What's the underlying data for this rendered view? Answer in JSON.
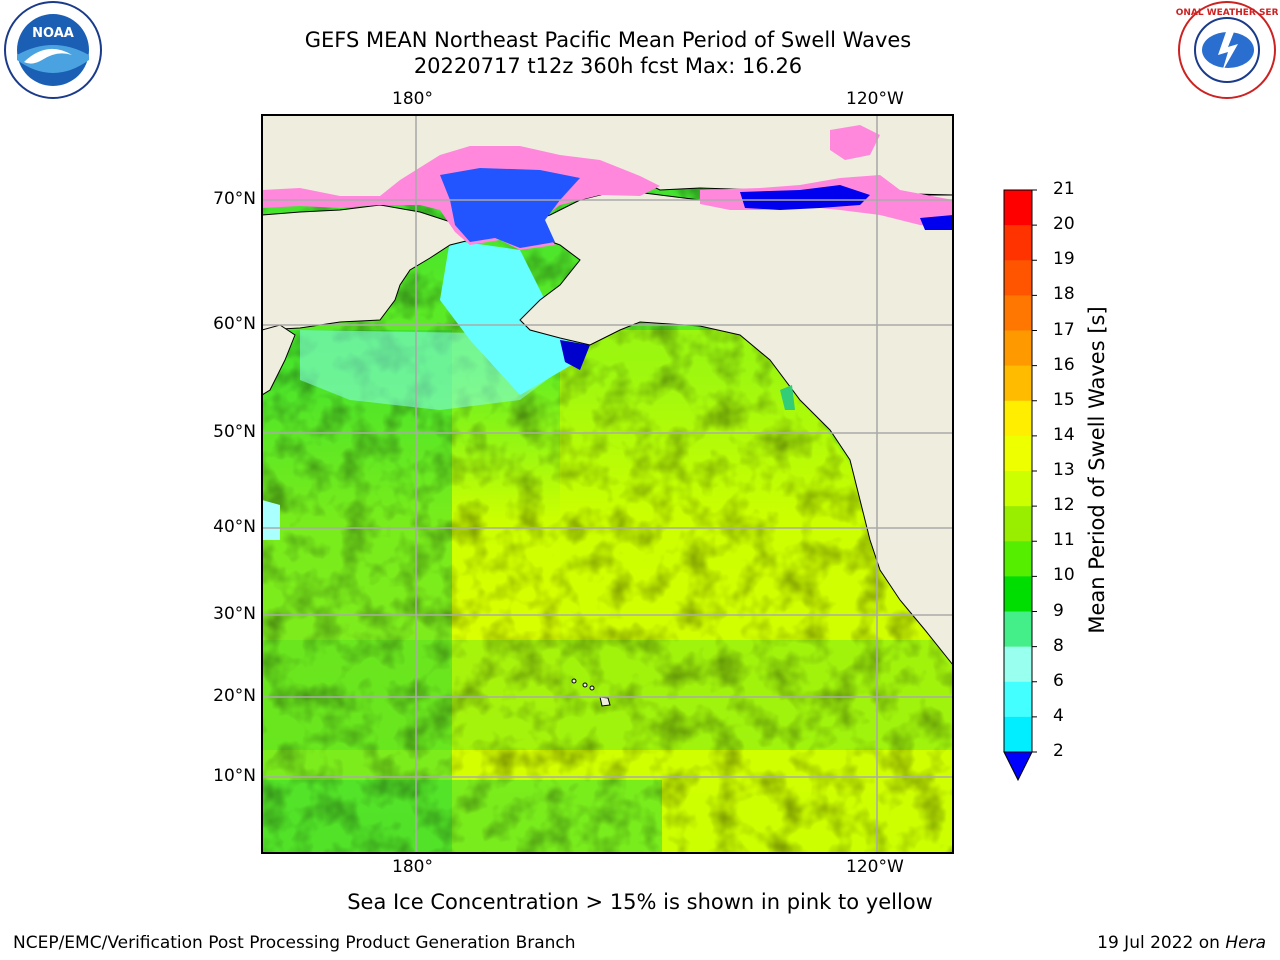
{
  "title": {
    "line1": "GEFS MEAN Northeast Pacific Mean Period of Swell Waves",
    "line2": "20220717 t12z 360h fcst   Max: 16.26"
  },
  "map": {
    "x_ticks_top": [
      "180°",
      "120°W"
    ],
    "x_ticks_bottom": [
      "180°",
      "120°W"
    ],
    "y_ticks": [
      "70°N",
      "60°N",
      "50°N",
      "40°N",
      "30°N",
      "20°N",
      "10°N"
    ],
    "land_color": "#efedde",
    "ocean_colors": {
      "green": "#33cc33",
      "yellowgreen": "#ccff00",
      "yellow": "#eeff00",
      "cyan": "#88ffff",
      "blue": "#0055ff",
      "pink": "#ff88dd"
    }
  },
  "colorbar": {
    "title": "Mean Period of Swell Waves [s]",
    "ticks": [
      "21",
      "20",
      "19",
      "18",
      "17",
      "16",
      "15",
      "14",
      "13",
      "12",
      "11",
      "10",
      "9",
      "8",
      "6",
      "4",
      "2"
    ],
    "colors": [
      "#ff0000",
      "#ff3300",
      "#ff5500",
      "#ff7700",
      "#ff9900",
      "#ffbb00",
      "#ffee00",
      "#eeff00",
      "#ccff00",
      "#99ee00",
      "#55ee00",
      "#00dd00",
      "#44ee88",
      "#99ffee",
      "#44ffff",
      "#00eeff",
      "#00aaff",
      "#0055ff",
      "#0000ff"
    ]
  },
  "note": "Sea Ice Concentration > 15% is shown in pink to yellow",
  "footer": {
    "left": "NCEP/EMC/Verification Post Processing Product Generation Branch",
    "right_date": "19 Jul 2022 on ",
    "right_host": "Hera"
  },
  "logos": {
    "left": "NOAA",
    "right": "NATIONAL WEATHER SERVICE"
  }
}
